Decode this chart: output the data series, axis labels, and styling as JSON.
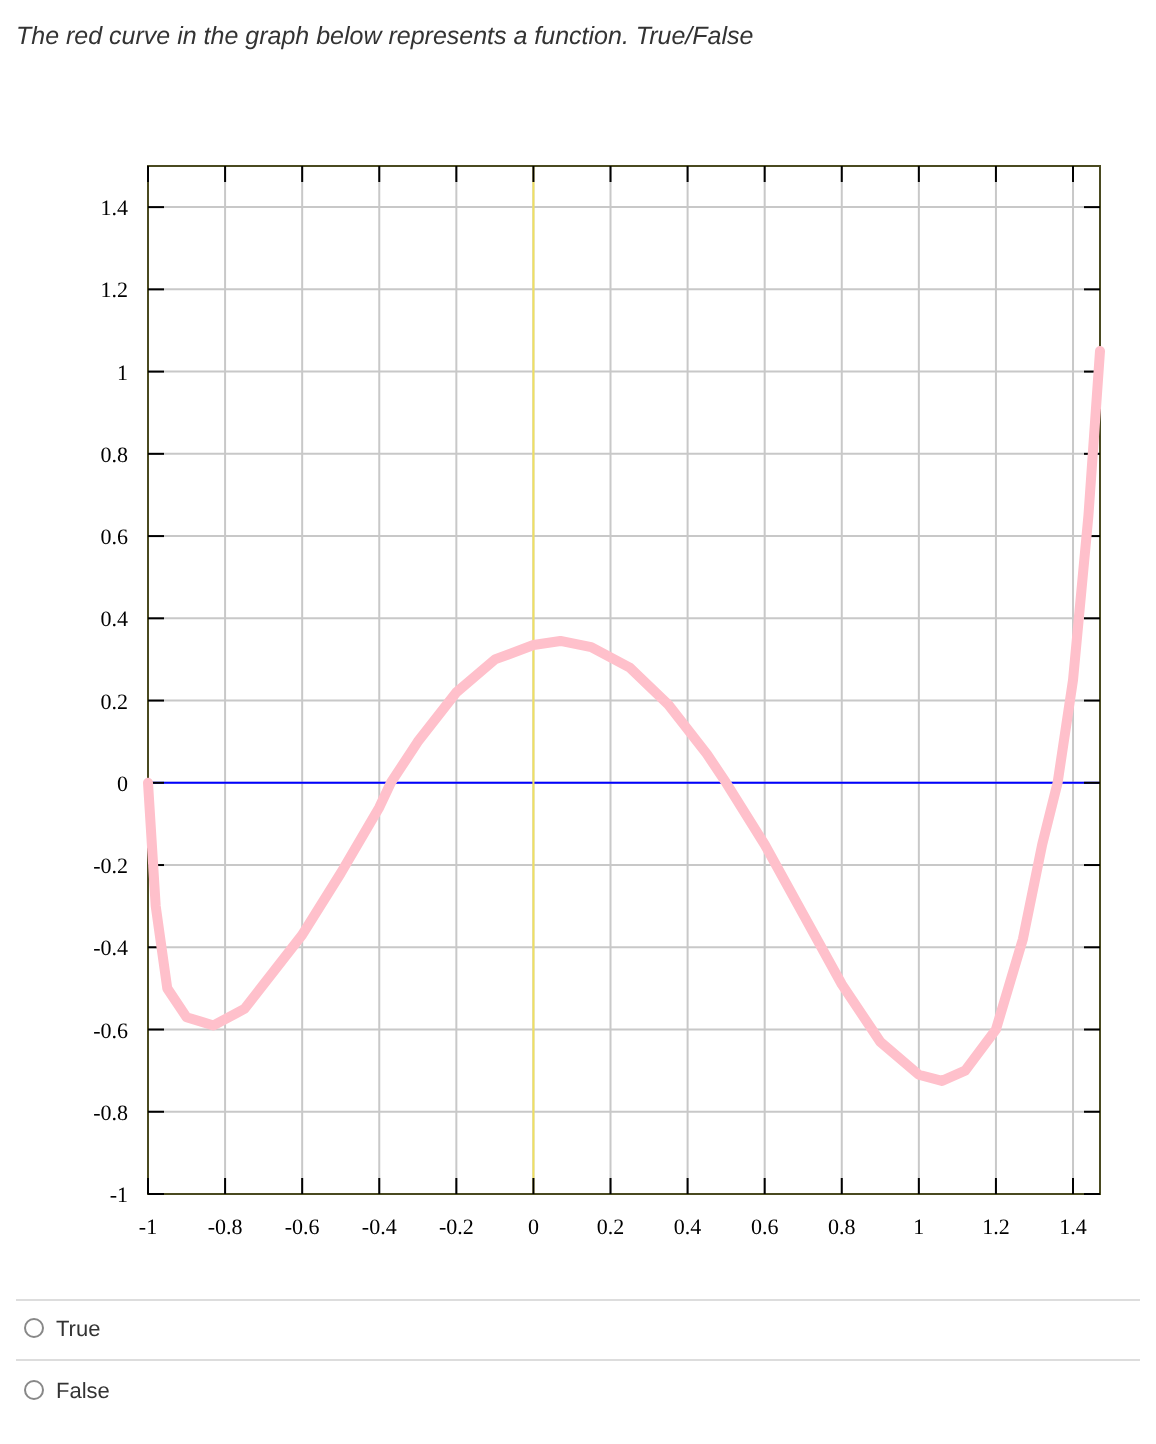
{
  "chart_data": {
    "type": "line",
    "title": "The red curve in the graph below represents a function. True/False",
    "x": [
      -1,
      -0.98,
      -0.95,
      -0.9,
      -0.83,
      -0.75,
      -0.6,
      -0.5,
      -0.4,
      -0.37,
      -0.3,
      -0.2,
      -0.1,
      0,
      0.07,
      0.15,
      0.25,
      0.35,
      0.45,
      0.5,
      0.6,
      0.7,
      0.8,
      0.9,
      1.0,
      1.06,
      1.12,
      1.2,
      1.27,
      1.32,
      1.36,
      1.4,
      1.44,
      1.47
    ],
    "series": [
      {
        "color": "#ffc0cb",
        "values": [
          0,
          -0.3,
          -0.5,
          -0.57,
          -0.59,
          -0.55,
          -0.37,
          -0.22,
          -0.06,
          0,
          0.1,
          0.22,
          0.3,
          0.335,
          0.345,
          0.33,
          0.28,
          0.19,
          0.07,
          0,
          -0.15,
          -0.32,
          -0.49,
          -0.63,
          -0.71,
          -0.725,
          -0.7,
          -0.6,
          -0.38,
          -0.15,
          0,
          0.25,
          0.65,
          1.05
        ]
      }
    ],
    "xlim": [
      -1,
      1.47
    ],
    "ylim": [
      -1,
      1.5
    ],
    "xticks": [
      -1,
      -0.8,
      -0.6,
      -0.4,
      -0.2,
      0,
      0.2,
      0.4,
      0.6,
      0.8,
      1,
      1.2,
      1.4
    ],
    "yticks": [
      -1,
      -0.8,
      -0.6,
      -0.4,
      -0.2,
      0,
      0.2,
      0.4,
      0.6,
      0.8,
      1,
      1.2,
      1.4
    ],
    "grid": true,
    "marker": "none",
    "line_style": "solid",
    "ref_lines": [
      {
        "axis": "y",
        "value": 0,
        "color": "#0000ff"
      },
      {
        "axis": "x",
        "value": 0,
        "color": "#f0e060"
      }
    ],
    "annotations": [
      "True",
      "False"
    ]
  }
}
